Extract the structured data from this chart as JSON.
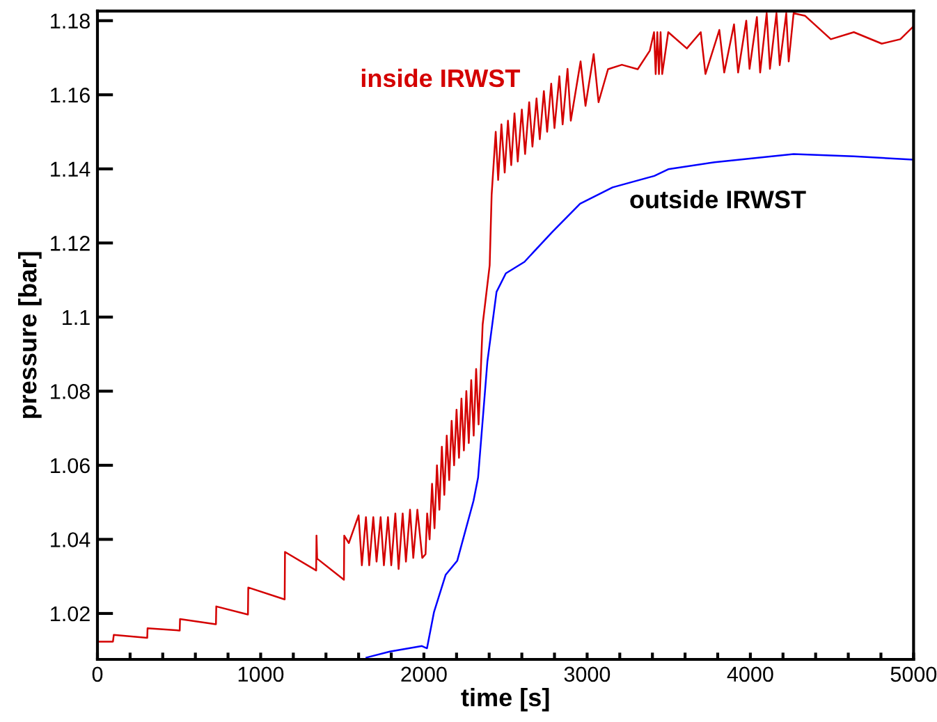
{
  "chart_data": {
    "type": "line",
    "xlabel": "time [s]",
    "ylabel": "pressure [bar]",
    "xlim": [
      0,
      5000
    ],
    "ylim": [
      1.0076,
      1.1826
    ],
    "xticks": [
      0,
      {
        "value": 200,
        "label": null
      },
      {
        "value": 400,
        "label": null
      },
      {
        "value": 600,
        "label": null
      },
      {
        "value": 800,
        "label": null
      },
      1000,
      {
        "value": 1200,
        "label": null
      },
      {
        "value": 1400,
        "label": null
      },
      {
        "value": 1600,
        "label": null
      },
      {
        "value": 1800,
        "label": null
      },
      2000,
      {
        "value": 2200,
        "label": null
      },
      {
        "value": 2400,
        "label": null
      },
      {
        "value": 2600,
        "label": null
      },
      {
        "value": 2800,
        "label": null
      },
      3000,
      {
        "value": 3200,
        "label": null
      },
      {
        "value": 3400,
        "label": null
      },
      {
        "value": 3600,
        "label": null
      },
      {
        "value": 3800,
        "label": null
      },
      4000,
      {
        "value": 4200,
        "label": null
      },
      {
        "value": 4400,
        "label": null
      },
      {
        "value": 4600,
        "label": null
      },
      {
        "value": 4800,
        "label": null
      },
      5000
    ],
    "yticks": [
      1.02,
      1.04,
      1.06,
      1.08,
      1.1,
      1.12,
      1.14,
      1.16,
      1.18
    ],
    "grid": false,
    "legend": false,
    "marker": "none",
    "line_style": "solid",
    "series": [
      {
        "name": "inside IRWST",
        "color": "#d40000",
        "x": [
          0,
          95,
          100,
          305,
          307,
          504,
          506,
          726,
          728,
          922,
          924,
          1147,
          1149,
          1340,
          1342,
          1346,
          1510,
          1512,
          1540,
          1600,
          1620,
          1645,
          1665,
          1690,
          1710,
          1735,
          1755,
          1780,
          1800,
          1825,
          1845,
          1870,
          1890,
          1915,
          1935,
          1960,
          1990,
          2010,
          2020,
          2035,
          2050,
          2065,
          2080,
          2095,
          2110,
          2125,
          2140,
          2155,
          2170,
          2185,
          2200,
          2215,
          2230,
          2245,
          2260,
          2275,
          2290,
          2305,
          2320,
          2335,
          2360,
          2403,
          2415,
          2440,
          2455,
          2475,
          2495,
          2515,
          2535,
          2555,
          2575,
          2600,
          2620,
          2645,
          2665,
          2690,
          2710,
          2735,
          2755,
          2780,
          2800,
          2830,
          2850,
          2880,
          2900,
          2960,
          2990,
          3040,
          3070,
          3128,
          3213,
          3310,
          3384,
          3410,
          3420,
          3430,
          3440,
          3450,
          3460,
          3497,
          3611,
          3696,
          3725,
          3810,
          3840,
          3900,
          3925,
          3975,
          3995,
          4040,
          4060,
          4100,
          4120,
          4160,
          4180,
          4220,
          4235,
          4265,
          4336,
          4493,
          4634,
          4805,
          4919,
          5000
        ],
        "values": [
          1.0124,
          1.0124,
          1.0142,
          1.0134,
          1.016,
          1.0154,
          1.0185,
          1.0171,
          1.0219,
          1.0197,
          1.027,
          1.0238,
          1.0366,
          1.0316,
          1.041,
          1.0348,
          1.0291,
          1.041,
          1.039,
          1.0465,
          1.033,
          1.046,
          1.033,
          1.046,
          1.034,
          1.046,
          1.033,
          1.046,
          1.033,
          1.047,
          1.032,
          1.047,
          1.034,
          1.048,
          1.035,
          1.048,
          1.035,
          1.036,
          1.047,
          1.04,
          1.055,
          1.043,
          1.06,
          1.048,
          1.065,
          1.052,
          1.068,
          1.056,
          1.072,
          1.06,
          1.075,
          1.062,
          1.078,
          1.064,
          1.08,
          1.066,
          1.083,
          1.068,
          1.086,
          1.071,
          1.098,
          1.114,
          1.133,
          1.15,
          1.137,
          1.152,
          1.139,
          1.153,
          1.141,
          1.155,
          1.142,
          1.156,
          1.144,
          1.158,
          1.146,
          1.159,
          1.148,
          1.161,
          1.15,
          1.163,
          1.151,
          1.165,
          1.152,
          1.167,
          1.153,
          1.169,
          1.157,
          1.171,
          1.158,
          1.1669,
          1.1681,
          1.1669,
          1.1719,
          1.1769,
          1.1656,
          1.1769,
          1.1656,
          1.1769,
          1.1656,
          1.1769,
          1.1725,
          1.1769,
          1.1656,
          1.1775,
          1.166,
          1.179,
          1.166,
          1.18,
          1.167,
          1.181,
          1.166,
          1.182,
          1.167,
          1.182,
          1.168,
          1.182,
          1.169,
          1.182,
          1.1813,
          1.175,
          1.1769,
          1.1738,
          1.175,
          1.1785
        ]
      },
      {
        "name": "outside IRWST",
        "color": "#0000ff",
        "x": [
          1648,
          1791,
          1988,
          2019,
          2062,
          2133,
          2204,
          2304,
          2332,
          2389,
          2445,
          2502,
          2616,
          2787,
          2957,
          3156,
          3412,
          3497,
          3781,
          4265,
          4634,
          4990
        ],
        "values": [
          1.0081,
          1.0097,
          1.0112,
          1.0106,
          1.0204,
          1.0304,
          1.0342,
          1.0504,
          1.0567,
          1.088,
          1.1068,
          1.1118,
          1.1149,
          1.123,
          1.1306,
          1.135,
          1.1381,
          1.1399,
          1.1418,
          1.144,
          1.1434,
          1.1425
        ]
      }
    ]
  }
}
